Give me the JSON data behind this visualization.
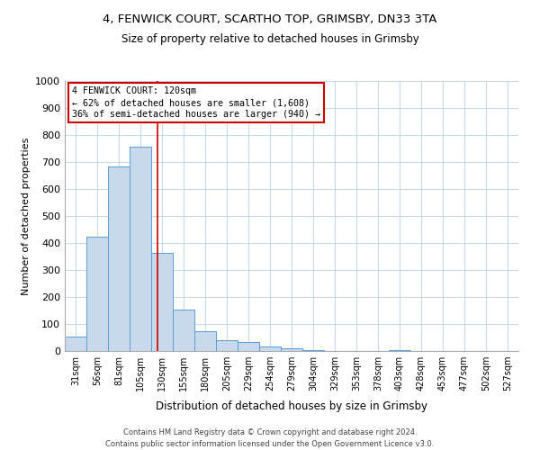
{
  "title_line1": "4, FENWICK COURT, SCARTHO TOP, GRIMSBY, DN33 3TA",
  "title_line2": "Size of property relative to detached houses in Grimsby",
  "xlabel": "Distribution of detached houses by size in Grimsby",
  "ylabel": "Number of detached properties",
  "bar_color": "#c9d9ec",
  "bar_edge_color": "#5b9bd5",
  "categories": [
    "31sqm",
    "56sqm",
    "81sqm",
    "105sqm",
    "130sqm",
    "155sqm",
    "180sqm",
    "205sqm",
    "229sqm",
    "254sqm",
    "279sqm",
    "304sqm",
    "329sqm",
    "353sqm",
    "378sqm",
    "403sqm",
    "428sqm",
    "453sqm",
    "477sqm",
    "502sqm",
    "527sqm"
  ],
  "values": [
    52,
    422,
    683,
    757,
    363,
    153,
    75,
    40,
    32,
    18,
    10,
    5,
    0,
    0,
    0,
    5,
    0,
    0,
    0,
    0,
    0
  ],
  "ylim": [
    0,
    1000
  ],
  "yticks": [
    0,
    100,
    200,
    300,
    400,
    500,
    600,
    700,
    800,
    900,
    1000
  ],
  "annotation_title": "4 FENWICK COURT: 120sqm",
  "annotation_line2": "← 62% of detached houses are smaller (1,608)",
  "annotation_line3": "36% of semi-detached houses are larger (940) →",
  "annotation_box_color": "#ffffff",
  "annotation_box_edge": "#cc0000",
  "vline_color": "#cc0000",
  "footer_line1": "Contains HM Land Registry data © Crown copyright and database right 2024.",
  "footer_line2": "Contains public sector information licensed under the Open Government Licence v3.0.",
  "background_color": "#ffffff",
  "grid_color": "#c8d8e8"
}
